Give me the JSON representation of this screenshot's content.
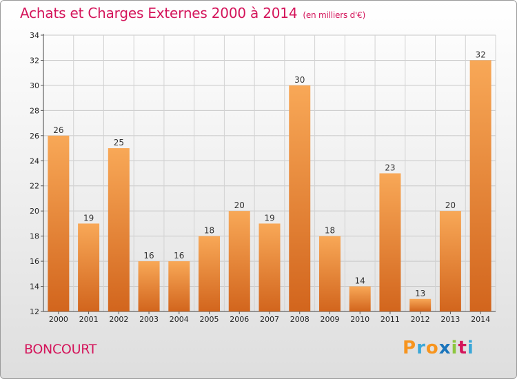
{
  "title": "Achats et Charges Externes 2000 à 2014",
  "unit": "(en milliers d'€)",
  "place": "BONCOURT",
  "logo": {
    "text": "Proxiti",
    "letters": [
      "P",
      "r",
      "o",
      "x",
      "i",
      "t",
      "i"
    ],
    "colors": [
      "#f7941d",
      "#3aa7d8",
      "#f7941d",
      "#1b75bc",
      "#8dc63f",
      "#d4145a",
      "#3aa7d8"
    ]
  },
  "colors": {
    "bar_light": "#f8a857",
    "bar_dark": "#d2651d",
    "title": "#d4145a"
  },
  "chart_data": {
    "type": "bar",
    "title": "Achats et Charges Externes 2000 à 2014",
    "subtitle": "(en milliers d'€)",
    "categories": [
      "2000",
      "2001",
      "2002",
      "2003",
      "2004",
      "2005",
      "2006",
      "2007",
      "2008",
      "2009",
      "2010",
      "2011",
      "2012",
      "2013",
      "2014"
    ],
    "values": [
      26,
      19,
      25,
      16,
      16,
      18,
      20,
      19,
      30,
      18,
      14,
      23,
      13,
      20,
      32
    ],
    "xlabel": "",
    "ylabel": "",
    "ylim": [
      12,
      34
    ],
    "yticks": [
      12,
      14,
      16,
      18,
      20,
      22,
      24,
      26,
      28,
      30,
      32,
      34
    ],
    "grid": true
  }
}
